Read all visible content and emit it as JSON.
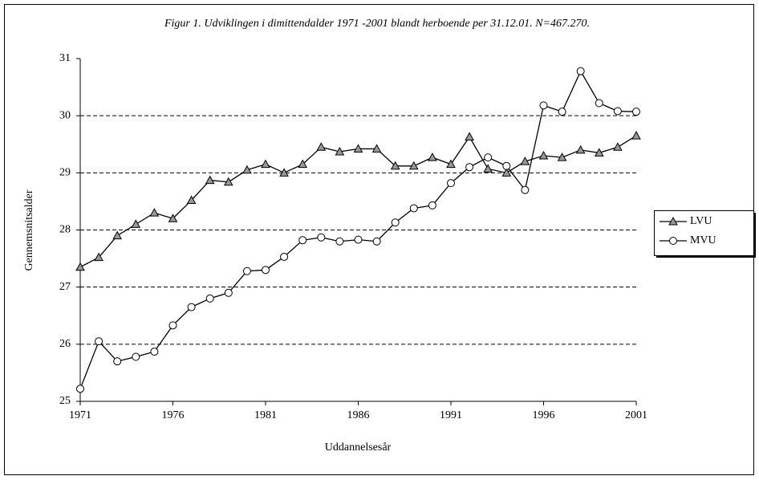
{
  "chart_data": {
    "type": "line",
    "title": "Figur 1. Udviklingen i dimittendalder 1971 -2001 blandt herboende per 31.12.01. N=467.270.",
    "x_label": "Uddannelsesår",
    "y_label": "Gennemsnitsalder",
    "x": [
      1971,
      1972,
      1973,
      1974,
      1975,
      1976,
      1977,
      1978,
      1979,
      1980,
      1981,
      1982,
      1983,
      1984,
      1985,
      1986,
      1987,
      1988,
      1989,
      1990,
      1991,
      1992,
      1993,
      1994,
      1995,
      1996,
      1997,
      1998,
      1999,
      2000,
      2001
    ],
    "series": [
      {
        "name": "LVU",
        "color": "#000000",
        "marker": "triangle",
        "marker_fill": "#999999",
        "values": [
          27.35,
          27.52,
          27.9,
          28.1,
          28.3,
          28.2,
          28.52,
          28.87,
          28.84,
          29.05,
          29.15,
          29.0,
          29.15,
          29.45,
          29.37,
          29.42,
          29.42,
          29.12,
          29.12,
          29.27,
          29.15,
          29.63,
          29.07,
          29.0,
          29.2,
          29.3,
          29.27,
          29.4,
          29.35,
          29.45,
          29.65
        ]
      },
      {
        "name": "MVU",
        "color": "#000000",
        "marker": "circle",
        "marker_fill": "#ffffff",
        "values": [
          25.22,
          26.05,
          25.7,
          25.78,
          25.87,
          26.33,
          26.65,
          26.8,
          26.9,
          27.28,
          27.3,
          27.53,
          27.82,
          27.87,
          27.8,
          27.83,
          27.8,
          28.13,
          28.38,
          28.43,
          28.82,
          29.1,
          29.27,
          29.12,
          28.7,
          30.18,
          30.07,
          30.78,
          30.22,
          30.08,
          30.07
        ]
      }
    ],
    "xlim": [
      1971,
      2001
    ],
    "xticks": [
      1971,
      1976,
      1981,
      1986,
      1991,
      1996,
      2001
    ],
    "ylim": [
      25,
      31
    ],
    "yticks": [
      25,
      26,
      27,
      28,
      29,
      30,
      31
    ],
    "grid": true,
    "legend": "right"
  }
}
